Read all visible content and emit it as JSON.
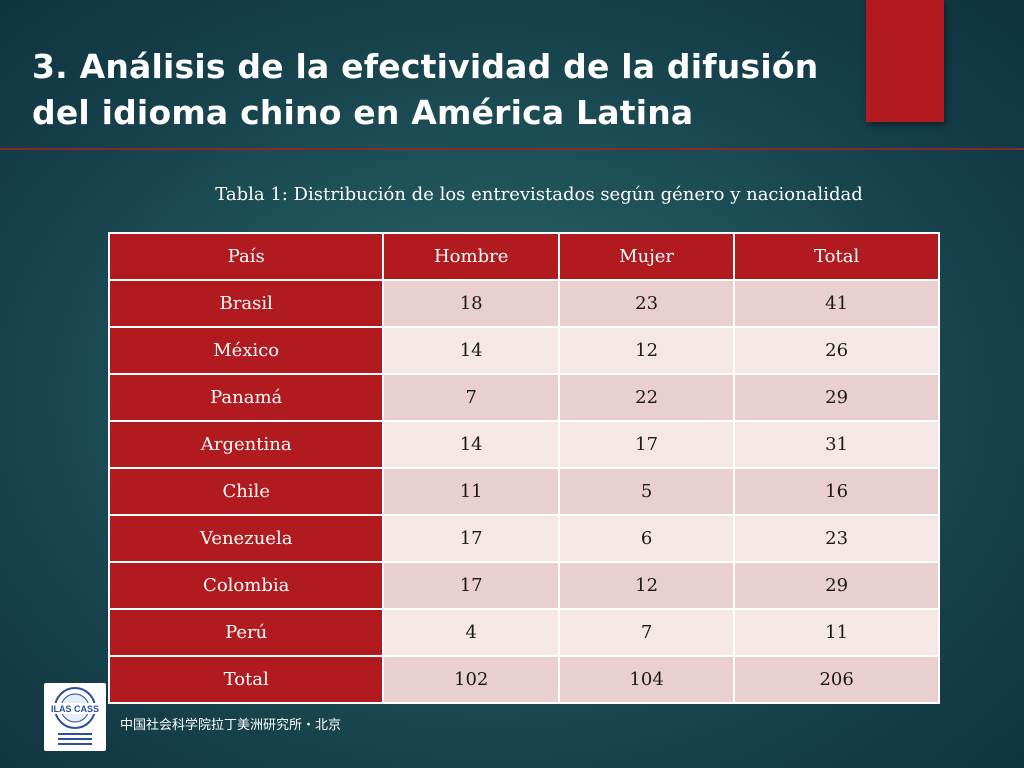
{
  "slide": {
    "title_line1": "3. Análisis de la efectividad de la difusión",
    "title_line2": "del idioma chino en América Latina"
  },
  "table": {
    "caption": "Tabla 1: Distribución de los entrevistados según género y nacionalidad",
    "headers": [
      "País",
      "Hombre",
      "Mujer",
      "Total"
    ],
    "rows": [
      {
        "pais": "Brasil",
        "hombre": "18",
        "mujer": "23",
        "total": "41"
      },
      {
        "pais": "México",
        "hombre": "14",
        "mujer": "12",
        "total": "26"
      },
      {
        "pais": "Panamá",
        "hombre": "7",
        "mujer": "22",
        "total": "29"
      },
      {
        "pais": "Argentina",
        "hombre": "14",
        "mujer": "17",
        "total": "31"
      },
      {
        "pais": "Chile",
        "hombre": "11",
        "mujer": "5",
        "total": "16"
      },
      {
        "pais": "Venezuela",
        "hombre": "17",
        "mujer": "6",
        "total": "23"
      },
      {
        "pais": "Colombia",
        "hombre": "17",
        "mujer": "12",
        "total": "29"
      },
      {
        "pais": "Perú",
        "hombre": "4",
        "mujer": "7",
        "total": "11"
      },
      {
        "pais": "Total",
        "hombre": "102",
        "mujer": "104",
        "total": "206"
      }
    ]
  },
  "logo": {
    "text": "ILAS CASS"
  },
  "footer": {
    "text": "中国社会科学院拉丁美洲研究所・北京"
  },
  "colors": {
    "accent_red": "#b11a1e",
    "background": "#1f5359",
    "row_odd": "#e9cfcf",
    "row_even": "#f4e7e6"
  }
}
